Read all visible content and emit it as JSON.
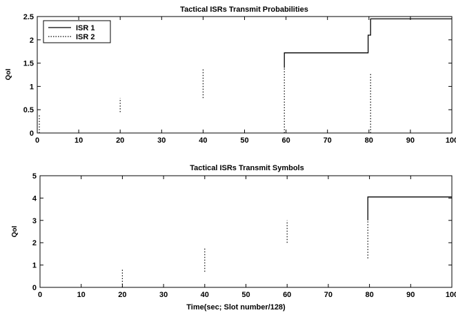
{
  "chart_data": [
    {
      "type": "line",
      "title": "Tactical ISRs Transmit Probabilities",
      "xlabel": "",
      "ylabel": "QoI",
      "xlim": [
        0,
        100
      ],
      "ylim": [
        0,
        2.5
      ],
      "xticks": [
        0,
        10,
        20,
        30,
        40,
        50,
        60,
        70,
        80,
        90,
        100
      ],
      "yticks": [
        0,
        0.5,
        1,
        1.5,
        2,
        2.5
      ],
      "xtick_labels": [
        "0",
        "10",
        "20",
        "30",
        "40",
        "50",
        "60",
        "70",
        "80",
        "90",
        "100"
      ],
      "ytick_labels": [
        "0",
        "0.5",
        "1",
        "1.5",
        "2",
        "2.5"
      ],
      "grid": false,
      "legend_position": "top-left",
      "series": [
        {
          "name": "ISR 1",
          "style": "solid",
          "color": "#000000",
          "x": [
            59.6,
            59.6,
            79.8,
            79.8,
            80.4,
            80.4,
            100
          ],
          "y": [
            1.4,
            1.72,
            1.72,
            2.1,
            2.1,
            2.45,
            2.45
          ]
        },
        {
          "name": "ISR 2",
          "style": "dotted",
          "color": "#000000",
          "segments": [
            {
              "x": [
                0.5,
                0.5
              ],
              "y": [
                0,
                0.4
              ]
            },
            {
              "x": [
                20,
                20
              ],
              "y": [
                0.45,
                0.75
              ]
            },
            {
              "x": [
                40,
                40
              ],
              "y": [
                0.75,
                1.4
              ]
            },
            {
              "x": [
                59.6,
                59.6
              ],
              "y": [
                0,
                1.4
              ]
            },
            {
              "x": [
                80.4,
                80.4
              ],
              "y": [
                0,
                1.3
              ]
            }
          ]
        }
      ]
    },
    {
      "type": "line",
      "title": "Tactical ISRs Transmit Symbols",
      "xlabel": "Time(sec; Slot number/128)",
      "ylabel": "QoI",
      "xlim": [
        0,
        100
      ],
      "ylim": [
        0,
        5
      ],
      "xticks": [
        0,
        10,
        20,
        30,
        40,
        50,
        60,
        70,
        80,
        90,
        100
      ],
      "yticks": [
        0,
        1,
        2,
        3,
        4,
        5
      ],
      "xtick_labels": [
        "0",
        "10",
        "20",
        "30",
        "40",
        "50",
        "60",
        "70",
        "80",
        "90",
        "100"
      ],
      "ytick_labels": [
        "0",
        "1",
        "2",
        "3",
        "4",
        "5"
      ],
      "grid": false,
      "series": [
        {
          "style": "solid",
          "color": "#000000",
          "x": [
            79.6,
            79.6,
            100
          ],
          "y": [
            3.0,
            4.05,
            4.05
          ]
        },
        {
          "style": "dotted",
          "color": "#000000",
          "segments": [
            {
              "x": [
                20,
                20
              ],
              "y": [
                0,
                0.8
              ]
            },
            {
              "x": [
                40,
                40
              ],
              "y": [
                0.7,
                1.8
              ]
            },
            {
              "x": [
                60,
                60
              ],
              "y": [
                2.0,
                3.0
              ]
            },
            {
              "x": [
                79.6,
                79.6
              ],
              "y": [
                1.3,
                3.0
              ]
            }
          ]
        }
      ]
    }
  ]
}
